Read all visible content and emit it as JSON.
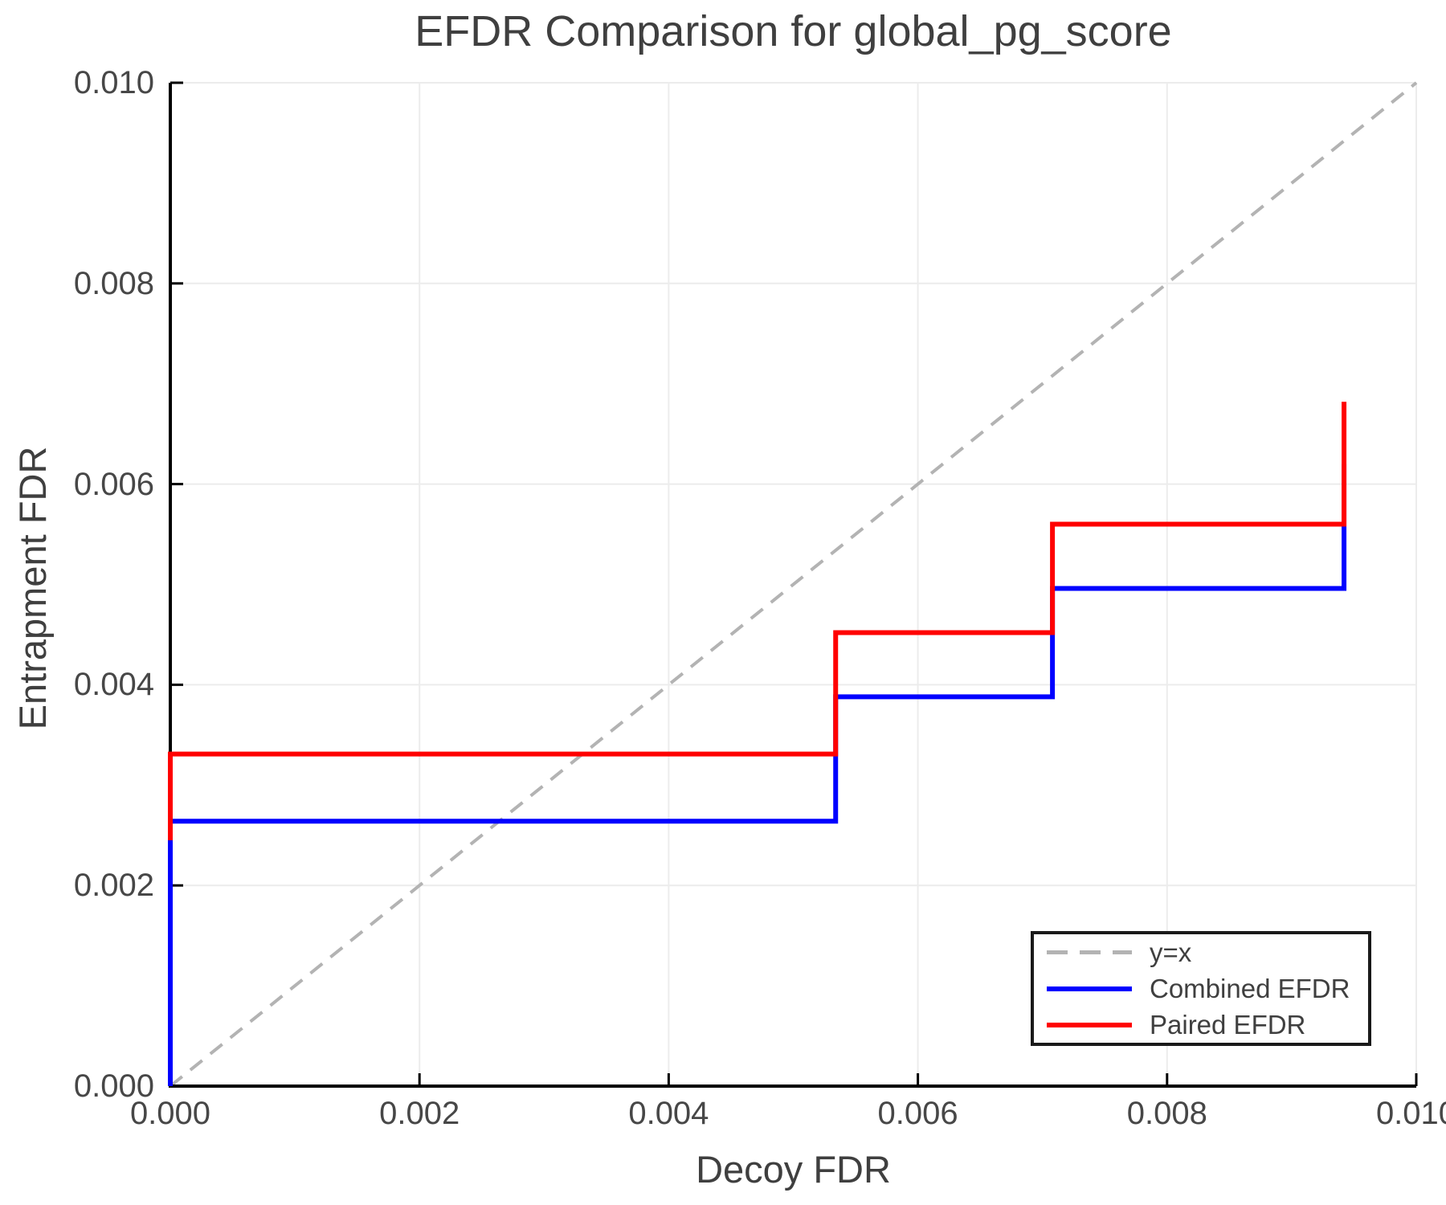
{
  "title": "EFDR Comparison for global_pg_score",
  "x_axis": {
    "label": "Decoy FDR",
    "tick_labels": [
      "0.000",
      "0.002",
      "0.004",
      "0.006",
      "0.008",
      "0.010"
    ]
  },
  "y_axis": {
    "label": "Entrapment FDR",
    "tick_labels": [
      "0.000",
      "0.002",
      "0.004",
      "0.006",
      "0.008",
      "0.010"
    ]
  },
  "legend": {
    "items": [
      {
        "label": "y=x",
        "color": "#b3b3b3",
        "style": "dashed"
      },
      {
        "label": "Combined EFDR",
        "color": "#0000ff",
        "style": "solid"
      },
      {
        "label": "Paired EFDR",
        "color": "#ff0000",
        "style": "solid"
      }
    ]
  },
  "colors": {
    "grid": "#ececec",
    "spine": "#000000",
    "tick": "#000000",
    "text": "#3f3f3f",
    "diagonal": "#b3b3b3"
  },
  "chart_data": {
    "type": "line",
    "title": "EFDR Comparison for global_pg_score",
    "xlabel": "Decoy FDR",
    "ylabel": "Entrapment FDR",
    "xlim": [
      0,
      0.01
    ],
    "ylim": [
      0,
      0.01
    ],
    "x_ticks": [
      0,
      0.002,
      0.004,
      0.006,
      0.008,
      0.01
    ],
    "y_ticks": [
      0,
      0.002,
      0.004,
      0.006,
      0.008,
      0.01
    ],
    "grid": true,
    "legend_position": "lower right",
    "reference_line": {
      "name": "y=x",
      "style": "dashed",
      "color": "#b3b3b3",
      "points": [
        [
          0,
          0
        ],
        [
          0.01,
          0.01
        ]
      ]
    },
    "series": [
      {
        "name": "Combined EFDR",
        "color": "#0000ff",
        "step": true,
        "points": [
          [
            0,
            0
          ],
          [
            0,
            0.00264
          ],
          [
            0.00534,
            0.00264
          ],
          [
            0.00534,
            0.00388
          ],
          [
            0.00708,
            0.00388
          ],
          [
            0.00708,
            0.00496
          ],
          [
            0.00942,
            0.00496
          ],
          [
            0.00942,
            0.0062
          ]
        ]
      },
      {
        "name": "Paired EFDR",
        "color": "#ff0000",
        "step": true,
        "points": [
          [
            0,
            0.00245
          ],
          [
            0,
            0.00331
          ],
          [
            0.00534,
            0.00331
          ],
          [
            0.00534,
            0.00452
          ],
          [
            0.00708,
            0.00452
          ],
          [
            0.00708,
            0.0056
          ],
          [
            0.00942,
            0.0056
          ],
          [
            0.00942,
            0.00682
          ]
        ]
      }
    ]
  }
}
